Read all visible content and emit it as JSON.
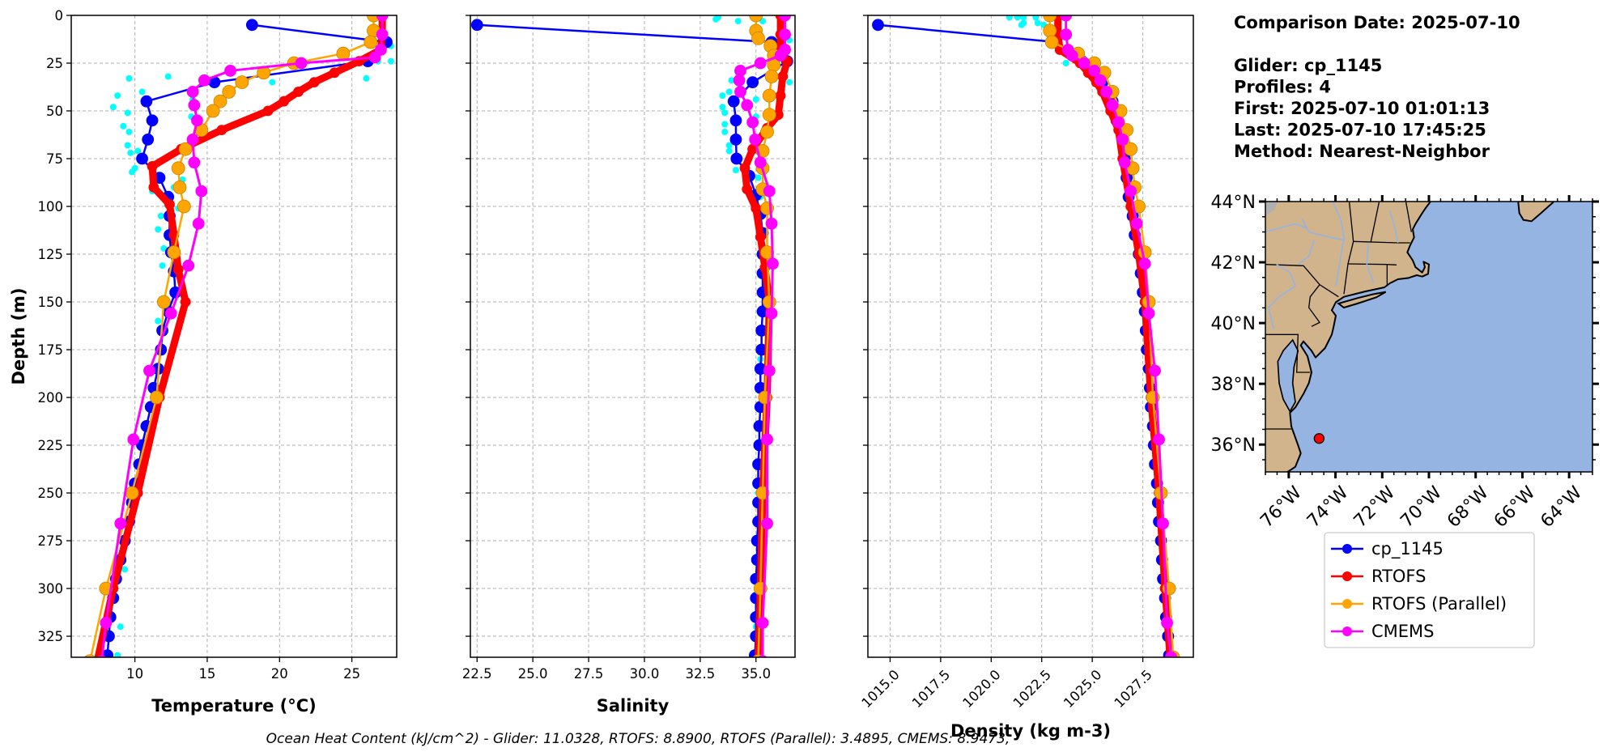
{
  "info": {
    "comparison_date": "Comparison Date: 2025-07-10",
    "glider": "Glider: cp_1145",
    "profiles": "Profiles: 4",
    "first": "First: 2025-07-10 01:01:13",
    "last": "Last: 2025-07-10 17:45:25",
    "method": "Method: Nearest-Neighbor"
  },
  "footer": "Ocean Heat Content (kJ/cm^2) - Glider: 11.0328,  RTOFS: 8.8900,  RTOFS (Parallel): 3.4895,  CMEMS: 8.9473,",
  "colors": {
    "glider": "#0000ff",
    "rtofs": "#ff0000",
    "rtofs_parallel": "#ffa500",
    "cmems": "#ff00ff",
    "raw": "#00ffff",
    "land": "#d2b48c",
    "ocean": "#96b4e1",
    "grid": "#b0b0b0"
  },
  "legend": {
    "placement": "below map",
    "entries": [
      {
        "key": "glider",
        "label": "cp_1145"
      },
      {
        "key": "rtofs",
        "label": "RTOFS"
      },
      {
        "key": "rtofs_parallel",
        "label": "RTOFS (Parallel)"
      },
      {
        "key": "cmems",
        "label": "CMEMS"
      }
    ]
  },
  "chart_data": [
    {
      "type": "line",
      "id": "temperature",
      "xlabel": "Temperature (°C)",
      "ylabel": "Depth (m)",
      "xlim": [
        5.6,
        28.1
      ],
      "ylim": [
        336,
        0
      ],
      "y_inverted": true,
      "grid": true,
      "xticks": [
        10,
        15,
        20,
        25
      ],
      "xtick_labels": [
        "10",
        "15",
        "20",
        "25"
      ],
      "yticks": [
        0,
        25,
        50,
        75,
        100,
        125,
        150,
        175,
        200,
        225,
        250,
        275,
        300,
        325
      ],
      "ytick_labels": [
        "0",
        "25",
        "50",
        "75",
        "100",
        "125",
        "150",
        "175",
        "200",
        "225",
        "250",
        "275",
        "300",
        "325"
      ],
      "raw_glider": [
        [
          9.6,
          33
        ],
        [
          12.3,
          32
        ],
        [
          8.8,
          42
        ],
        [
          8.5,
          48
        ],
        [
          10.5,
          40
        ],
        [
          9.5,
          51
        ],
        [
          9.2,
          58
        ],
        [
          9.6,
          61
        ],
        [
          9.5,
          68
        ],
        [
          9.7,
          72
        ],
        [
          10.2,
          71
        ],
        [
          9.8,
          82
        ],
        [
          10.0,
          80
        ],
        [
          14.0,
          44
        ],
        [
          13.9,
          53
        ],
        [
          19.5,
          35
        ],
        [
          22.4,
          35
        ],
        [
          26.0,
          33
        ],
        [
          27.7,
          24
        ],
        [
          26.8,
          24
        ],
        [
          27.7,
          16
        ],
        [
          11.2,
          92
        ],
        [
          12.7,
          90
        ],
        [
          13.3,
          86
        ],
        [
          13.0,
          101
        ],
        [
          11.8,
          105
        ],
        [
          11.6,
          112
        ],
        [
          12.0,
          122
        ],
        [
          11.9,
          131
        ],
        [
          11.6,
          160
        ],
        [
          11.3,
          205
        ],
        [
          10.2,
          245
        ],
        [
          9.3,
          290
        ],
        [
          9.0,
          320
        ],
        [
          8.8,
          335
        ]
      ],
      "series": [
        {
          "key": "glider",
          "name": "cp_1145",
          "depth": [
            5,
            14,
            24,
            35,
            45,
            55,
            65,
            75,
            85,
            95,
            105,
            115,
            124,
            134,
            145,
            155,
            165,
            175,
            185,
            195,
            205,
            215,
            225,
            235,
            245,
            255,
            265,
            275,
            285,
            295,
            305,
            315,
            325,
            335
          ],
          "values": [
            18.1,
            27.4,
            26.1,
            15.5,
            10.8,
            11.2,
            10.9,
            10.5,
            11.7,
            12.3,
            12.4,
            12.4,
            12.5,
            12.7,
            12.8,
            12.3,
            11.9,
            11.8,
            11.6,
            11.3,
            11.1,
            10.8,
            10.5,
            10.3,
            10.0,
            9.8,
            9.6,
            9.3,
            9.0,
            8.7,
            8.5,
            8.3,
            8.2,
            8.1
          ]
        },
        {
          "key": "rtofs",
          "name": "RTOFS",
          "depth": [
            0,
            10,
            18,
            24,
            30,
            35,
            40,
            45,
            50,
            60,
            70,
            79,
            90,
            99,
            115,
            133,
            150,
            200,
            250,
            300,
            338
          ],
          "values": [
            27.1,
            27.1,
            27.0,
            25.5,
            23.8,
            22.4,
            21.3,
            20.3,
            19.2,
            16.0,
            13.2,
            11.2,
            11.3,
            12.4,
            12.7,
            13.0,
            13.5,
            11.7,
            10.2,
            8.5,
            7.4
          ]
        },
        {
          "key": "rtofs_parallel",
          "name": "RTOFS (Parallel)",
          "depth": [
            0,
            8,
            14,
            20,
            25,
            30,
            35,
            40,
            45,
            50,
            60,
            70,
            80,
            90,
            100,
            124,
            150,
            200,
            250,
            300,
            338
          ],
          "values": [
            26.5,
            26.5,
            26.3,
            24.4,
            21.0,
            18.9,
            17.4,
            16.5,
            15.9,
            15.4,
            14.6,
            13.5,
            13.0,
            13.1,
            13.4,
            12.7,
            12.0,
            11.5,
            9.8,
            8.0,
            6.9
          ]
        },
        {
          "key": "cmems",
          "name": "CMEMS",
          "depth": [
            0,
            10,
            18,
            22,
            25,
            29,
            34,
            40,
            47,
            55,
            65,
            77,
            92,
            109,
            131,
            156,
            186,
            222,
            266,
            318,
            338
          ],
          "values": [
            27.1,
            27.1,
            27.0,
            26.6,
            21.5,
            16.6,
            14.8,
            14.0,
            14.1,
            14.3,
            14.0,
            14.1,
            14.6,
            14.4,
            13.7,
            12.5,
            11.0,
            9.9,
            9.0,
            8.0,
            7.7
          ]
        }
      ]
    },
    {
      "type": "line",
      "id": "salinity",
      "xlabel": "Salinity",
      "xlim": [
        22.2,
        36.75
      ],
      "ylim": [
        336,
        0
      ],
      "y_inverted": true,
      "grid": true,
      "xticks": [
        22.5,
        25,
        27.5,
        30,
        32.5,
        35
      ],
      "xtick_labels": [
        "22.5",
        "25.0",
        "27.5",
        "30.0",
        "32.5",
        "35.0"
      ],
      "yticks": [
        0,
        25,
        50,
        75,
        100,
        125,
        150,
        175,
        200,
        225,
        250,
        275,
        300,
        325
      ],
      "raw_glider": [
        [
          33.3,
          1
        ],
        [
          34.2,
          3
        ],
        [
          33.2,
          2
        ],
        [
          35.3,
          3
        ],
        [
          35.0,
          7
        ],
        [
          33.9,
          34
        ],
        [
          33.5,
          42
        ],
        [
          33.8,
          40
        ],
        [
          33.5,
          48
        ],
        [
          33.6,
          51
        ],
        [
          33.6,
          57
        ],
        [
          33.6,
          61
        ],
        [
          33.8,
          68
        ],
        [
          33.8,
          71
        ],
        [
          34.1,
          81
        ],
        [
          35.1,
          85
        ],
        [
          35.0,
          53
        ],
        [
          35.0,
          44
        ],
        [
          36.5,
          35
        ],
        [
          36.5,
          13
        ],
        [
          35.2,
          95
        ],
        [
          35.3,
          120
        ],
        [
          35.2,
          180
        ],
        [
          35.1,
          250
        ],
        [
          35.0,
          320
        ]
      ],
      "series": [
        {
          "key": "glider",
          "name": "cp_1145",
          "depth": [
            5,
            14,
            24,
            35,
            45,
            55,
            65,
            75,
            84,
            94,
            104,
            114,
            125,
            135,
            145,
            155,
            165,
            175,
            185,
            195,
            205,
            215,
            225,
            235,
            245,
            255,
            265,
            275,
            285,
            295,
            305,
            315,
            325,
            335
          ],
          "values": [
            22.5,
            35.7,
            36.4,
            34.85,
            34.0,
            34.1,
            34.1,
            34.13,
            34.7,
            35.0,
            35.2,
            35.3,
            35.3,
            35.3,
            35.3,
            35.3,
            35.25,
            35.25,
            35.2,
            35.2,
            35.2,
            35.15,
            35.15,
            35.1,
            35.1,
            35.1,
            35.1,
            35.05,
            35.05,
            35.0,
            35.0,
            35.0,
            35.0,
            34.95
          ]
        },
        {
          "key": "rtofs",
          "name": "RTOFS",
          "depth": [
            0,
            10,
            20,
            24,
            32,
            42,
            52,
            59,
            70,
            80,
            91,
            101,
            116,
            132,
            150,
            200,
            250,
            300,
            338
          ],
          "values": [
            36.1,
            36.1,
            36.1,
            36.4,
            36.2,
            36.1,
            36.0,
            35.5,
            34.85,
            34.5,
            34.6,
            35.0,
            35.2,
            35.4,
            35.6,
            35.5,
            35.3,
            35.2,
            35.1
          ]
        },
        {
          "key": "rtofs_parallel",
          "name": "RTOFS (Parallel)",
          "depth": [
            0,
            8,
            12,
            16,
            21,
            26,
            32,
            42,
            52,
            61,
            71,
            80,
            91,
            101,
            124,
            150,
            200,
            250,
            300,
            338
          ],
          "values": [
            35.0,
            35.0,
            35.1,
            35.65,
            35.8,
            35.8,
            35.7,
            35.6,
            35.6,
            35.5,
            35.3,
            35.3,
            35.3,
            35.5,
            35.5,
            35.6,
            35.4,
            35.3,
            35.2,
            35.1
          ]
        },
        {
          "key": "cmems",
          "name": "CMEMS",
          "depth": [
            0,
            10,
            18,
            21,
            25,
            29,
            34,
            40,
            47,
            56,
            65,
            77,
            92,
            109,
            130,
            156,
            186,
            222,
            266,
            318,
            338
          ],
          "values": [
            36.3,
            36.3,
            36.3,
            36.1,
            35.2,
            34.3,
            34.25,
            34.3,
            34.6,
            34.85,
            34.96,
            35.2,
            35.6,
            35.7,
            35.75,
            35.7,
            35.6,
            35.5,
            35.5,
            35.3,
            35.3
          ]
        }
      ]
    },
    {
      "type": "line",
      "id": "density",
      "xlabel": "Density (kg m-3)",
      "xlim": [
        1013.9,
        1030.0
      ],
      "ylim": [
        336,
        0
      ],
      "y_inverted": true,
      "grid": true,
      "xticks": [
        1015,
        1017.5,
        1020,
        1022.5,
        1025,
        1027.5
      ],
      "xtick_labels": [
        "1015.0",
        "1017.5",
        "1020.0",
        "1022.5",
        "1025.0",
        "1027.5"
      ],
      "xtick_rotation_deg": 45,
      "yticks": [
        0,
        25,
        50,
        75,
        100,
        125,
        150,
        175,
        200,
        225,
        250,
        275,
        300,
        325
      ],
      "raw_glider": [
        [
          1020.9,
          1
        ],
        [
          1021.3,
          1
        ],
        [
          1021.6,
          1
        ],
        [
          1021.5,
          5
        ],
        [
          1021.6,
          4
        ],
        [
          1022.2,
          1
        ],
        [
          1022.3,
          4
        ],
        [
          1022.6,
          5
        ],
        [
          1022.9,
          13
        ],
        [
          1023.7,
          25
        ],
        [
          1026.1,
          50
        ],
        [
          1026.7,
          80
        ],
        [
          1027.3,
          120
        ],
        [
          1027.9,
          200
        ],
        [
          1028.5,
          300
        ]
      ],
      "series": [
        {
          "key": "glider",
          "name": "cp_1145",
          "depth": [
            5,
            14,
            24,
            35,
            45,
            55,
            65,
            75,
            85,
            95,
            105,
            115,
            125,
            135,
            145,
            155,
            165,
            175,
            185,
            195,
            205,
            215,
            225,
            235,
            245,
            255,
            265,
            275,
            285,
            295,
            305,
            315,
            325,
            335
          ],
          "values": [
            1014.4,
            1023.2,
            1024.5,
            1025.5,
            1026.0,
            1026.2,
            1026.5,
            1026.6,
            1026.7,
            1026.8,
            1027.0,
            1027.1,
            1027.3,
            1027.4,
            1027.5,
            1027.6,
            1027.65,
            1027.7,
            1027.8,
            1027.85,
            1027.9,
            1028.0,
            1028.05,
            1028.1,
            1028.2,
            1028.25,
            1028.3,
            1028.4,
            1028.45,
            1028.5,
            1028.6,
            1028.65,
            1028.75,
            1028.8
          ]
        },
        {
          "key": "rtofs",
          "name": "RTOFS",
          "depth": [
            0,
            10,
            18,
            25,
            30,
            35,
            40,
            50,
            60,
            75,
            100,
            125,
            150,
            200,
            250,
            300,
            336
          ],
          "values": [
            1023.3,
            1023.3,
            1023.4,
            1024.4,
            1024.8,
            1025.2,
            1025.5,
            1025.9,
            1026.3,
            1026.5,
            1026.9,
            1027.3,
            1027.6,
            1027.9,
            1028.3,
            1028.6,
            1028.85
          ]
        },
        {
          "key": "rtofs_parallel",
          "name": "RTOFS (Parallel)",
          "depth": [
            0,
            8,
            14,
            20,
            25,
            30,
            40,
            50,
            60,
            70,
            80,
            90,
            100,
            124,
            150,
            200,
            250,
            300,
            336
          ],
          "values": [
            1022.9,
            1022.9,
            1023.0,
            1024.3,
            1025.1,
            1025.6,
            1026.0,
            1026.4,
            1026.7,
            1026.9,
            1027.0,
            1027.1,
            1027.3,
            1027.6,
            1027.8,
            1028.0,
            1028.4,
            1028.8,
            1029.0
          ]
        },
        {
          "key": "cmems",
          "name": "CMEMS",
          "depth": [
            0,
            10,
            18,
            21,
            25,
            29,
            34,
            40,
            47,
            56,
            65,
            77,
            92,
            109,
            130,
            156,
            186,
            222,
            266,
            318,
            336
          ],
          "values": [
            1023.7,
            1023.7,
            1023.8,
            1024.0,
            1024.6,
            1025.1,
            1025.4,
            1025.7,
            1026.0,
            1026.3,
            1026.5,
            1026.6,
            1026.9,
            1027.2,
            1027.6,
            1027.8,
            1028.1,
            1028.3,
            1028.5,
            1028.7,
            1028.9
          ]
        }
      ]
    },
    {
      "type": "map",
      "id": "location",
      "lon_range": [
        -77,
        -63
      ],
      "lat_range": [
        35.1,
        44
      ],
      "lon_ticks": [
        -76,
        -74,
        -72,
        -70,
        -68,
        -66,
        -64
      ],
      "lon_tick_labels": [
        "76°W",
        "74°W",
        "72°W",
        "70°W",
        "68°W",
        "66°W",
        "64°W"
      ],
      "lon_tick_rotation_deg": 45,
      "lat_ticks": [
        36,
        38,
        40,
        42,
        44
      ],
      "lat_tick_labels": [
        "36°N",
        "38°N",
        "40°N",
        "42°N",
        "44°N"
      ],
      "glider_position": {
        "lon": -74.7,
        "lat": 36.2,
        "marker_color": "#ff0000"
      }
    }
  ]
}
